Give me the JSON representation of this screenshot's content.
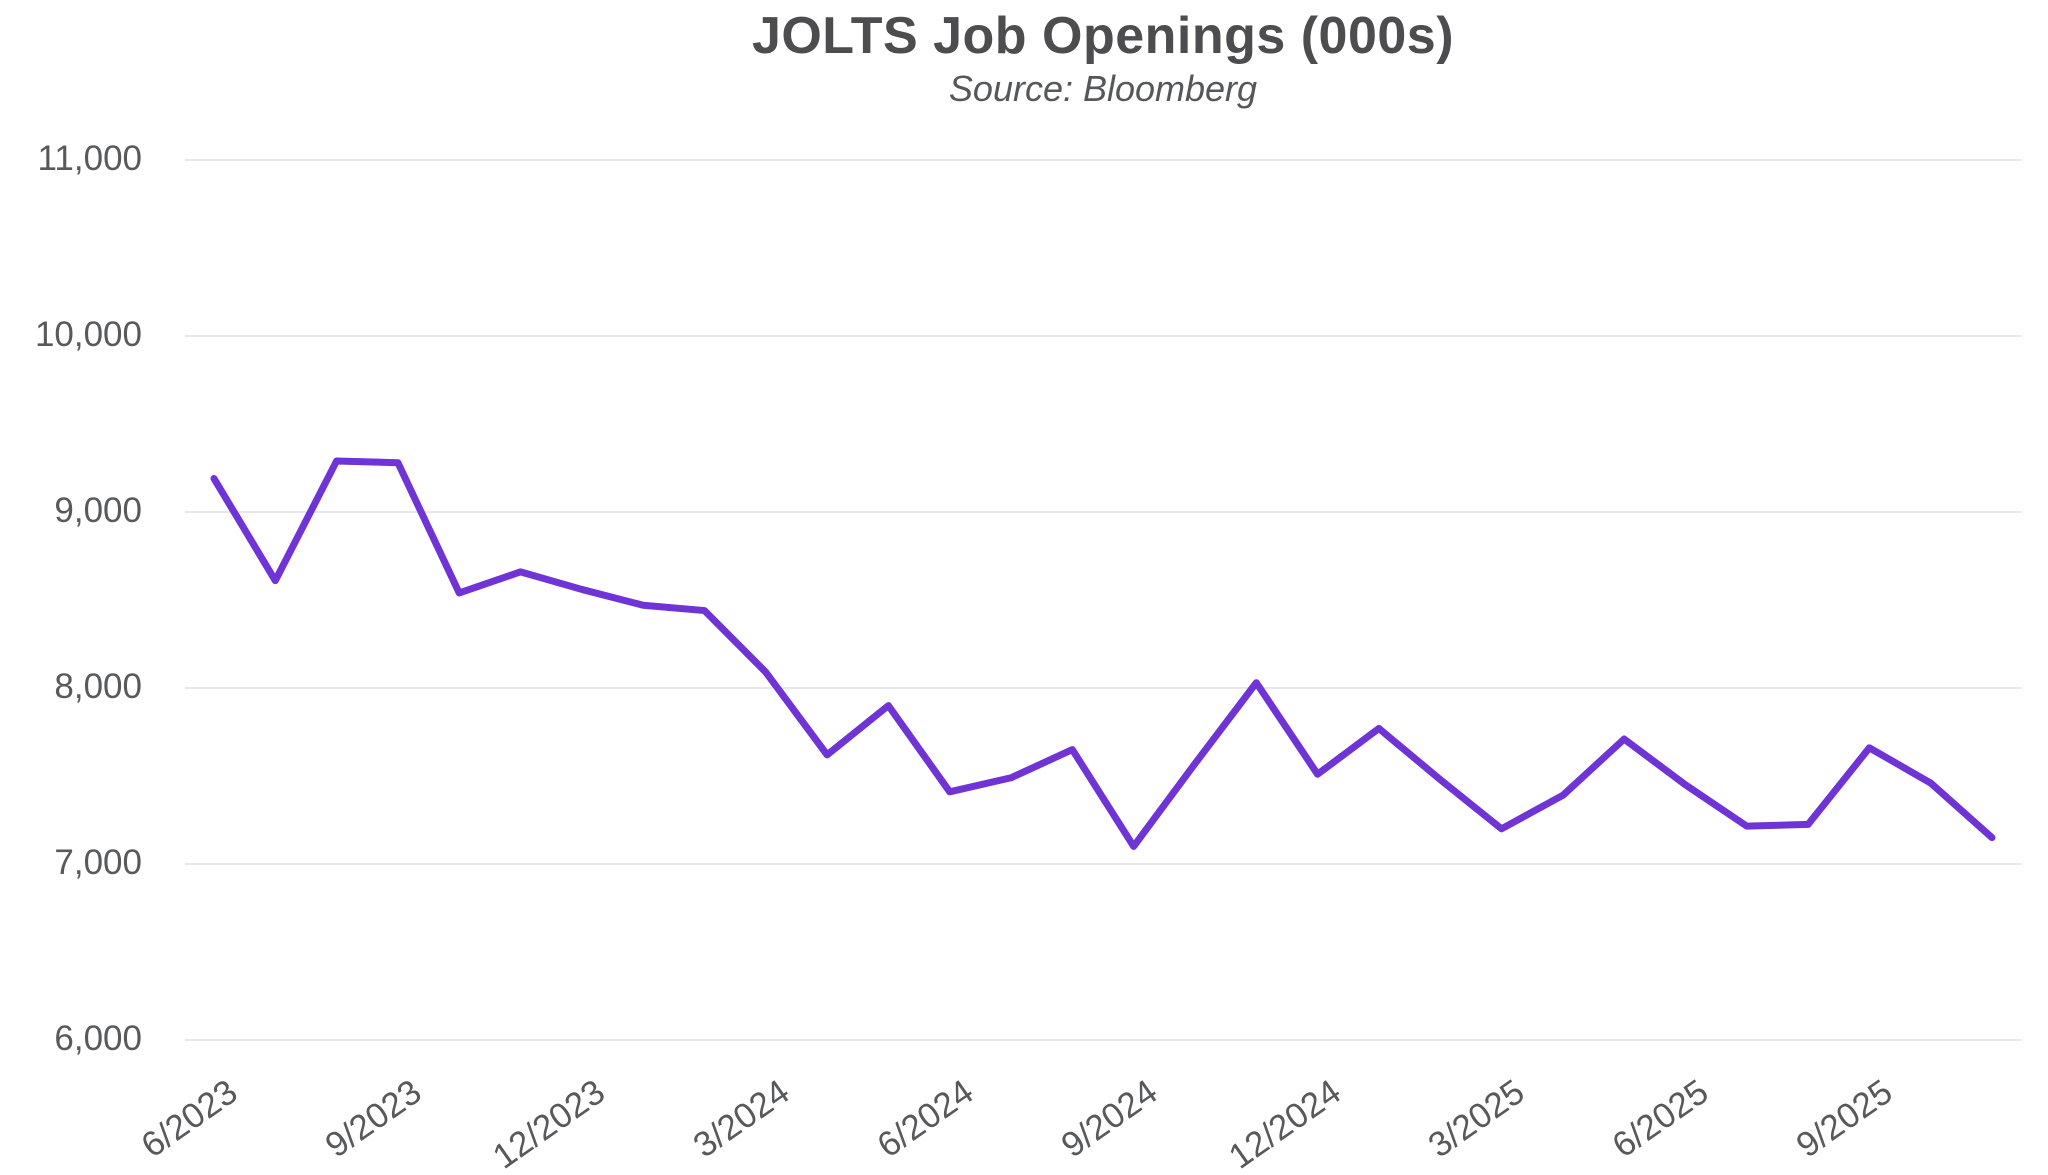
{
  "header": {
    "title": "JOLTS Job Openings (000s)",
    "subtitle": "Source: Bloomberg"
  },
  "chart_data": {
    "type": "line",
    "title": "JOLTS Job Openings (000s)",
    "subtitle": "Source: Bloomberg",
    "series_name": "JOLTS Job Openings (000s)",
    "x": [
      "6/2023",
      "7/2023",
      "8/2023",
      "9/2023",
      "10/2023",
      "11/2023",
      "12/2023",
      "1/2024",
      "2/2024",
      "3/2024",
      "4/2024",
      "5/2024",
      "6/2024",
      "7/2024",
      "8/2024",
      "9/2024",
      "10/2024",
      "11/2024",
      "12/2024",
      "1/2025",
      "2/2025",
      "3/2025",
      "4/2025",
      "5/2025",
      "6/2025",
      "7/2025",
      "8/2025",
      "9/2025",
      "10/2025",
      "11/2025"
    ],
    "values": [
      9190,
      8610,
      9290,
      9280,
      8540,
      8660,
      8560,
      8470,
      8440,
      8090,
      7620,
      7900,
      7410,
      7490,
      7650,
      7100,
      7570,
      8030,
      7510,
      7770,
      7480,
      7200,
      7390,
      7710,
      7450,
      7215,
      7225,
      7660,
      7460,
      7150
    ],
    "x_tick_labels": [
      "6/2023",
      "9/2023",
      "12/2023",
      "3/2024",
      "6/2024",
      "9/2024",
      "12/2024",
      "3/2025",
      "6/2025",
      "9/2025"
    ],
    "y_ticks": [
      6000,
      7000,
      8000,
      9000,
      10000,
      11000
    ],
    "y_tick_labels": [
      "6,000",
      "7,000",
      "8,000",
      "9,000",
      "10,000",
      "11,000"
    ],
    "ylim": [
      6000,
      11000
    ],
    "grid": "horizontal-only",
    "legend": "none"
  },
  "style": {
    "line_color": "#6f33d6",
    "grid_color": "#e8e8ec",
    "tick_text_color": "#58595b",
    "title_color": "#4d4d4f",
    "background": "#ffffff"
  }
}
